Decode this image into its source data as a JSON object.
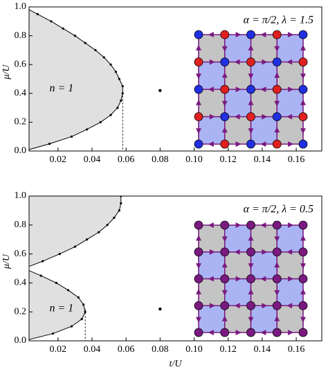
{
  "chart_data": [
    {
      "type": "line",
      "ylabel": "μ/U",
      "annotations": [
        "n = 1",
        "α = π/2,  λ = 1.5"
      ],
      "xlim": [
        0.003,
        0.175
      ],
      "ylim": [
        0,
        1
      ],
      "xticks": [
        0.02,
        0.04,
        0.06,
        0.08,
        {
          "value": 0.1,
          "label": "0.10"
        },
        0.12,
        0.14,
        0.16
      ],
      "yticks": [
        {
          "value": 0,
          "label": "0.0"
        },
        0.2,
        0.4,
        0.6,
        0.8,
        {
          "value": 1,
          "label": "1.0"
        }
      ],
      "series": [
        {
          "color": "#000000",
          "x": [
            0,
            0.015,
            0.028,
            0.037,
            0.045,
            0.051,
            0.055,
            0.057,
            0.058,
            0.058,
            0.056,
            0.054,
            0.051,
            0.047,
            0.042,
            0.036,
            0.03,
            0.023,
            0.016,
            0.008,
            0
          ],
          "values": [
            0,
            0.05,
            0.1,
            0.15,
            0.2,
            0.25,
            0.3,
            0.35,
            0.4,
            0.45,
            0.5,
            0.55,
            0.6,
            0.65,
            0.7,
            0.75,
            0.8,
            0.85,
            0.9,
            0.95,
            1
          ]
        }
      ],
      "critical_point": {
        "x": 0.058,
        "y": 0.41
      },
      "point": {
        "x": 0.08,
        "y": 0.42
      },
      "inset_colors": [
        "#2030e0",
        "#e02020"
      ]
    },
    {
      "type": "line",
      "xlabel": "t/U",
      "ylabel": "μ/U",
      "annotations": [
        "n = 1",
        "α = π/2,  λ = 0.5"
      ],
      "xlim": [
        0.003,
        0.175
      ],
      "ylim": [
        0,
        1
      ],
      "xticks": [
        0.02,
        0.04,
        0.06,
        0.08,
        {
          "value": 0.1,
          "label": "0.10"
        },
        0.12,
        0.14,
        0.16
      ],
      "yticks": [
        {
          "value": 0,
          "label": "0.0"
        },
        0.2,
        0.4,
        0.6,
        0.8,
        {
          "value": 1,
          "label": "1.0"
        }
      ],
      "series": [
        {
          "color": "#000000",
          "x": [
            0,
            0.017,
            0.028,
            0.034,
            0.036,
            0.035,
            0.032,
            0.026,
            0.019,
            0.01,
            0
          ],
          "values": [
            0,
            0.05,
            0.1,
            0.15,
            0.2,
            0.25,
            0.3,
            0.35,
            0.4,
            0.45,
            0.5
          ]
        },
        {
          "color": "#000000",
          "x": [
            0,
            0.011,
            0.021,
            0.03,
            0.037,
            0.044,
            0.049,
            0.053,
            0.056,
            0.057,
            0.057
          ],
          "values": [
            0.5,
            0.55,
            0.6,
            0.65,
            0.7,
            0.75,
            0.8,
            0.85,
            0.9,
            0.95,
            1
          ]
        }
      ],
      "critical_point": {
        "x": 0.036,
        "y": 0.22
      },
      "point": {
        "x": 0.08,
        "y": 0.22
      },
      "inset_colors": [
        "#7a1a80",
        "#7a1a80"
      ]
    }
  ]
}
